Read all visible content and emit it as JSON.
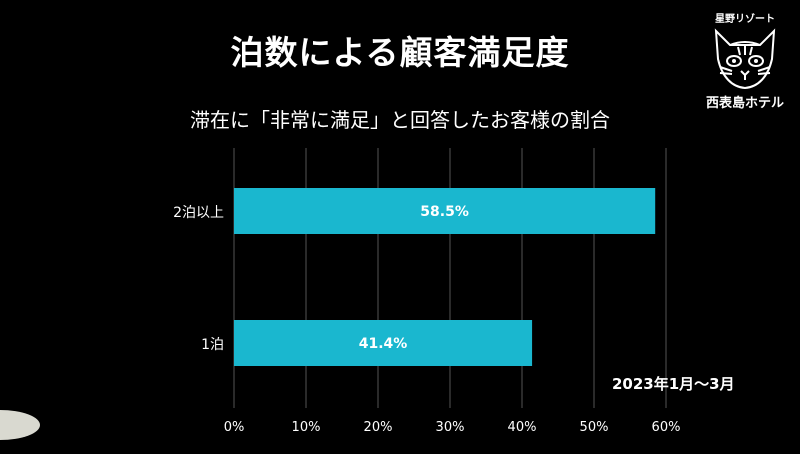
{
  "title": "泊数による顧客満足度",
  "subtitle": "滞在に「非常に満足」と回答したお客様の割合",
  "logo": {
    "top_text": "星野リゾート",
    "bottom_text": "西表島ホテル",
    "icon": "wildcat-face-icon"
  },
  "note": "2023年1月～3月",
  "colors": {
    "bar": "#1ab7cf",
    "background": "#000000",
    "grid": "#555555",
    "text": "#ffffff"
  },
  "chart_data": {
    "type": "bar",
    "orientation": "horizontal",
    "categories": [
      "2泊以上",
      "1泊"
    ],
    "values": [
      58.5,
      41.4
    ],
    "data_labels": [
      "58.5%",
      "41.4%"
    ],
    "xlim": [
      0,
      60
    ],
    "x_ticks": [
      "0%",
      "10%",
      "20%",
      "30%",
      "40%",
      "50%",
      "60%"
    ],
    "grid": true
  }
}
